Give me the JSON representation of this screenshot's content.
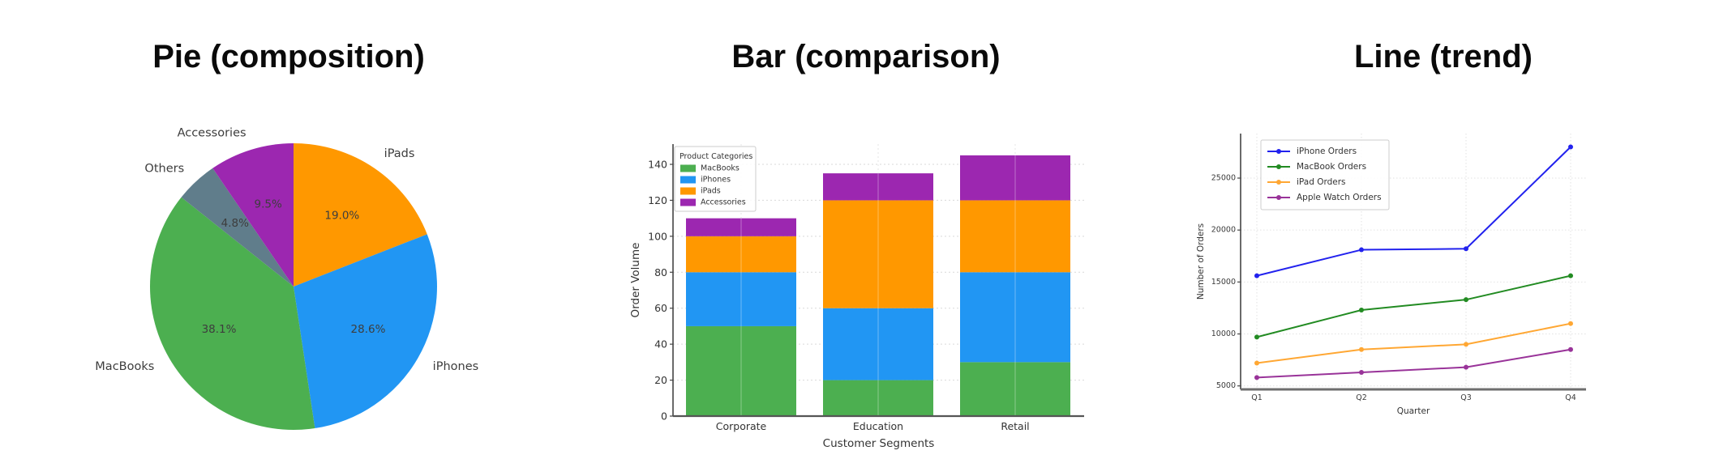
{
  "chart_data": [
    {
      "id": "pie",
      "type": "pie",
      "title": "Pie (composition)",
      "direction": "clockwise-from-top",
      "slices": [
        {
          "label": "iPads",
          "value": 20,
          "pct_label": "19.0%",
          "color": "#ff9800"
        },
        {
          "label": "iPhones",
          "value": 30,
          "pct_label": "28.6%",
          "color": "#2196f3"
        },
        {
          "label": "MacBooks",
          "value": 40,
          "pct_label": "38.1%",
          "color": "#4caf50"
        },
        {
          "label": "Others",
          "value": 5,
          "pct_label": "4.8%",
          "color": "#607d8b"
        },
        {
          "label": "Accessories",
          "value": 10,
          "pct_label": "9.5%",
          "color": "#9c27b0"
        }
      ]
    },
    {
      "id": "bar",
      "type": "bar",
      "stacked": true,
      "title": "Bar (comparison)",
      "categories": [
        "Corporate",
        "Education",
        "Retail"
      ],
      "series": [
        {
          "name": "MacBooks",
          "color": "#4caf50",
          "values": [
            50,
            20,
            30
          ]
        },
        {
          "name": "iPhones",
          "color": "#2196f3",
          "values": [
            30,
            40,
            50
          ]
        },
        {
          "name": "iPads",
          "color": "#ff9800",
          "values": [
            20,
            60,
            40
          ]
        },
        {
          "name": "Accessories",
          "color": "#9c27b0",
          "values": [
            10,
            15,
            25
          ]
        }
      ],
      "totals": [
        110,
        135,
        145
      ],
      "xlabel": "Customer Segments",
      "ylabel": "Order Volume",
      "ylim": [
        0,
        151
      ],
      "yticks": [
        0,
        20,
        40,
        60,
        80,
        100,
        120,
        140
      ],
      "grid": true,
      "legend_title": "Product Categories",
      "legend_position": "upper-left"
    },
    {
      "id": "line",
      "type": "line",
      "title": "Line (trend)",
      "x": [
        "Q1",
        "Q2",
        "Q3",
        "Q4"
      ],
      "series": [
        {
          "name": "iPhone Orders",
          "color": "#2222ee",
          "values": [
            15600,
            18100,
            18200,
            28000
          ]
        },
        {
          "name": "MacBook Orders",
          "color": "#228b22",
          "values": [
            9700,
            12300,
            13300,
            15600
          ]
        },
        {
          "name": "iPad Orders",
          "color": "#ffa733",
          "values": [
            7200,
            8500,
            9000,
            11000
          ]
        },
        {
          "name": "Apple Watch Orders",
          "color": "#993399",
          "values": [
            5800,
            6300,
            6800,
            8500
          ]
        }
      ],
      "xlabel": "Quarter",
      "ylabel": "Number of Orders",
      "ylim": [
        4500,
        29300
      ],
      "yticks": [
        5000,
        10000,
        15000,
        20000,
        25000
      ],
      "grid": true,
      "legend_position": "upper-left"
    }
  ]
}
